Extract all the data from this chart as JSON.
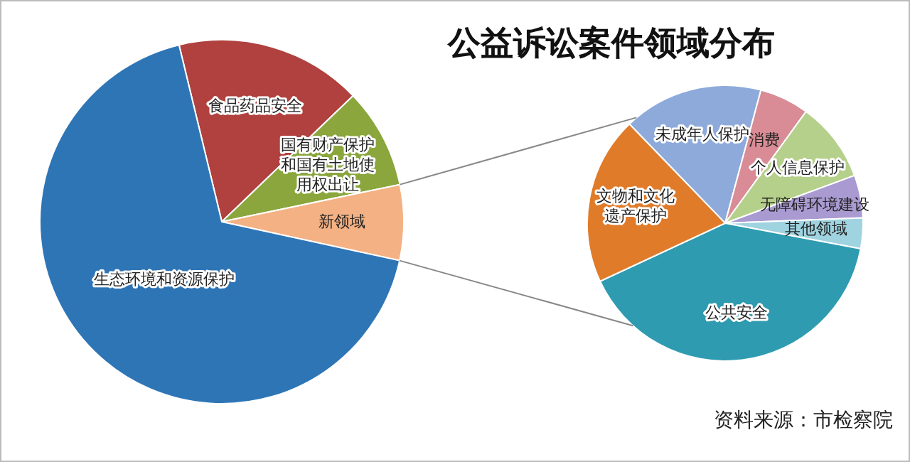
{
  "chart_data": [
    {
      "type": "pie",
      "title": "公益诉讼案件领域分布",
      "categories": [
        "食品药品安全",
        "国有财产保护和国有土地使用权出让",
        "新领域",
        "生态环境和资源保护"
      ],
      "values": [
        16.6,
        8.9,
        6.7,
        67.8
      ],
      "colors": [
        "#b0413e",
        "#8aa63c",
        "#f4b183",
        "#2e75b6"
      ]
    },
    {
      "type": "pie",
      "categories": [
        "未成年人保护",
        "消费",
        "个人信息保护",
        "无障碍环境建设",
        "其他领域",
        "公共安全",
        "文物和文化遗产保护"
      ],
      "values": [
        16.4,
        5.8,
        9.4,
        5.0,
        3.6,
        40.1,
        19.7
      ],
      "colors": [
        "#8eaadb",
        "#d98c95",
        "#b5d08a",
        "#a99bd1",
        "#9fd3e0",
        "#2e9bb0",
        "#e07b2a"
      ],
      "annotations": [
        "资料来源：市检察院"
      ]
    }
  ]
}
